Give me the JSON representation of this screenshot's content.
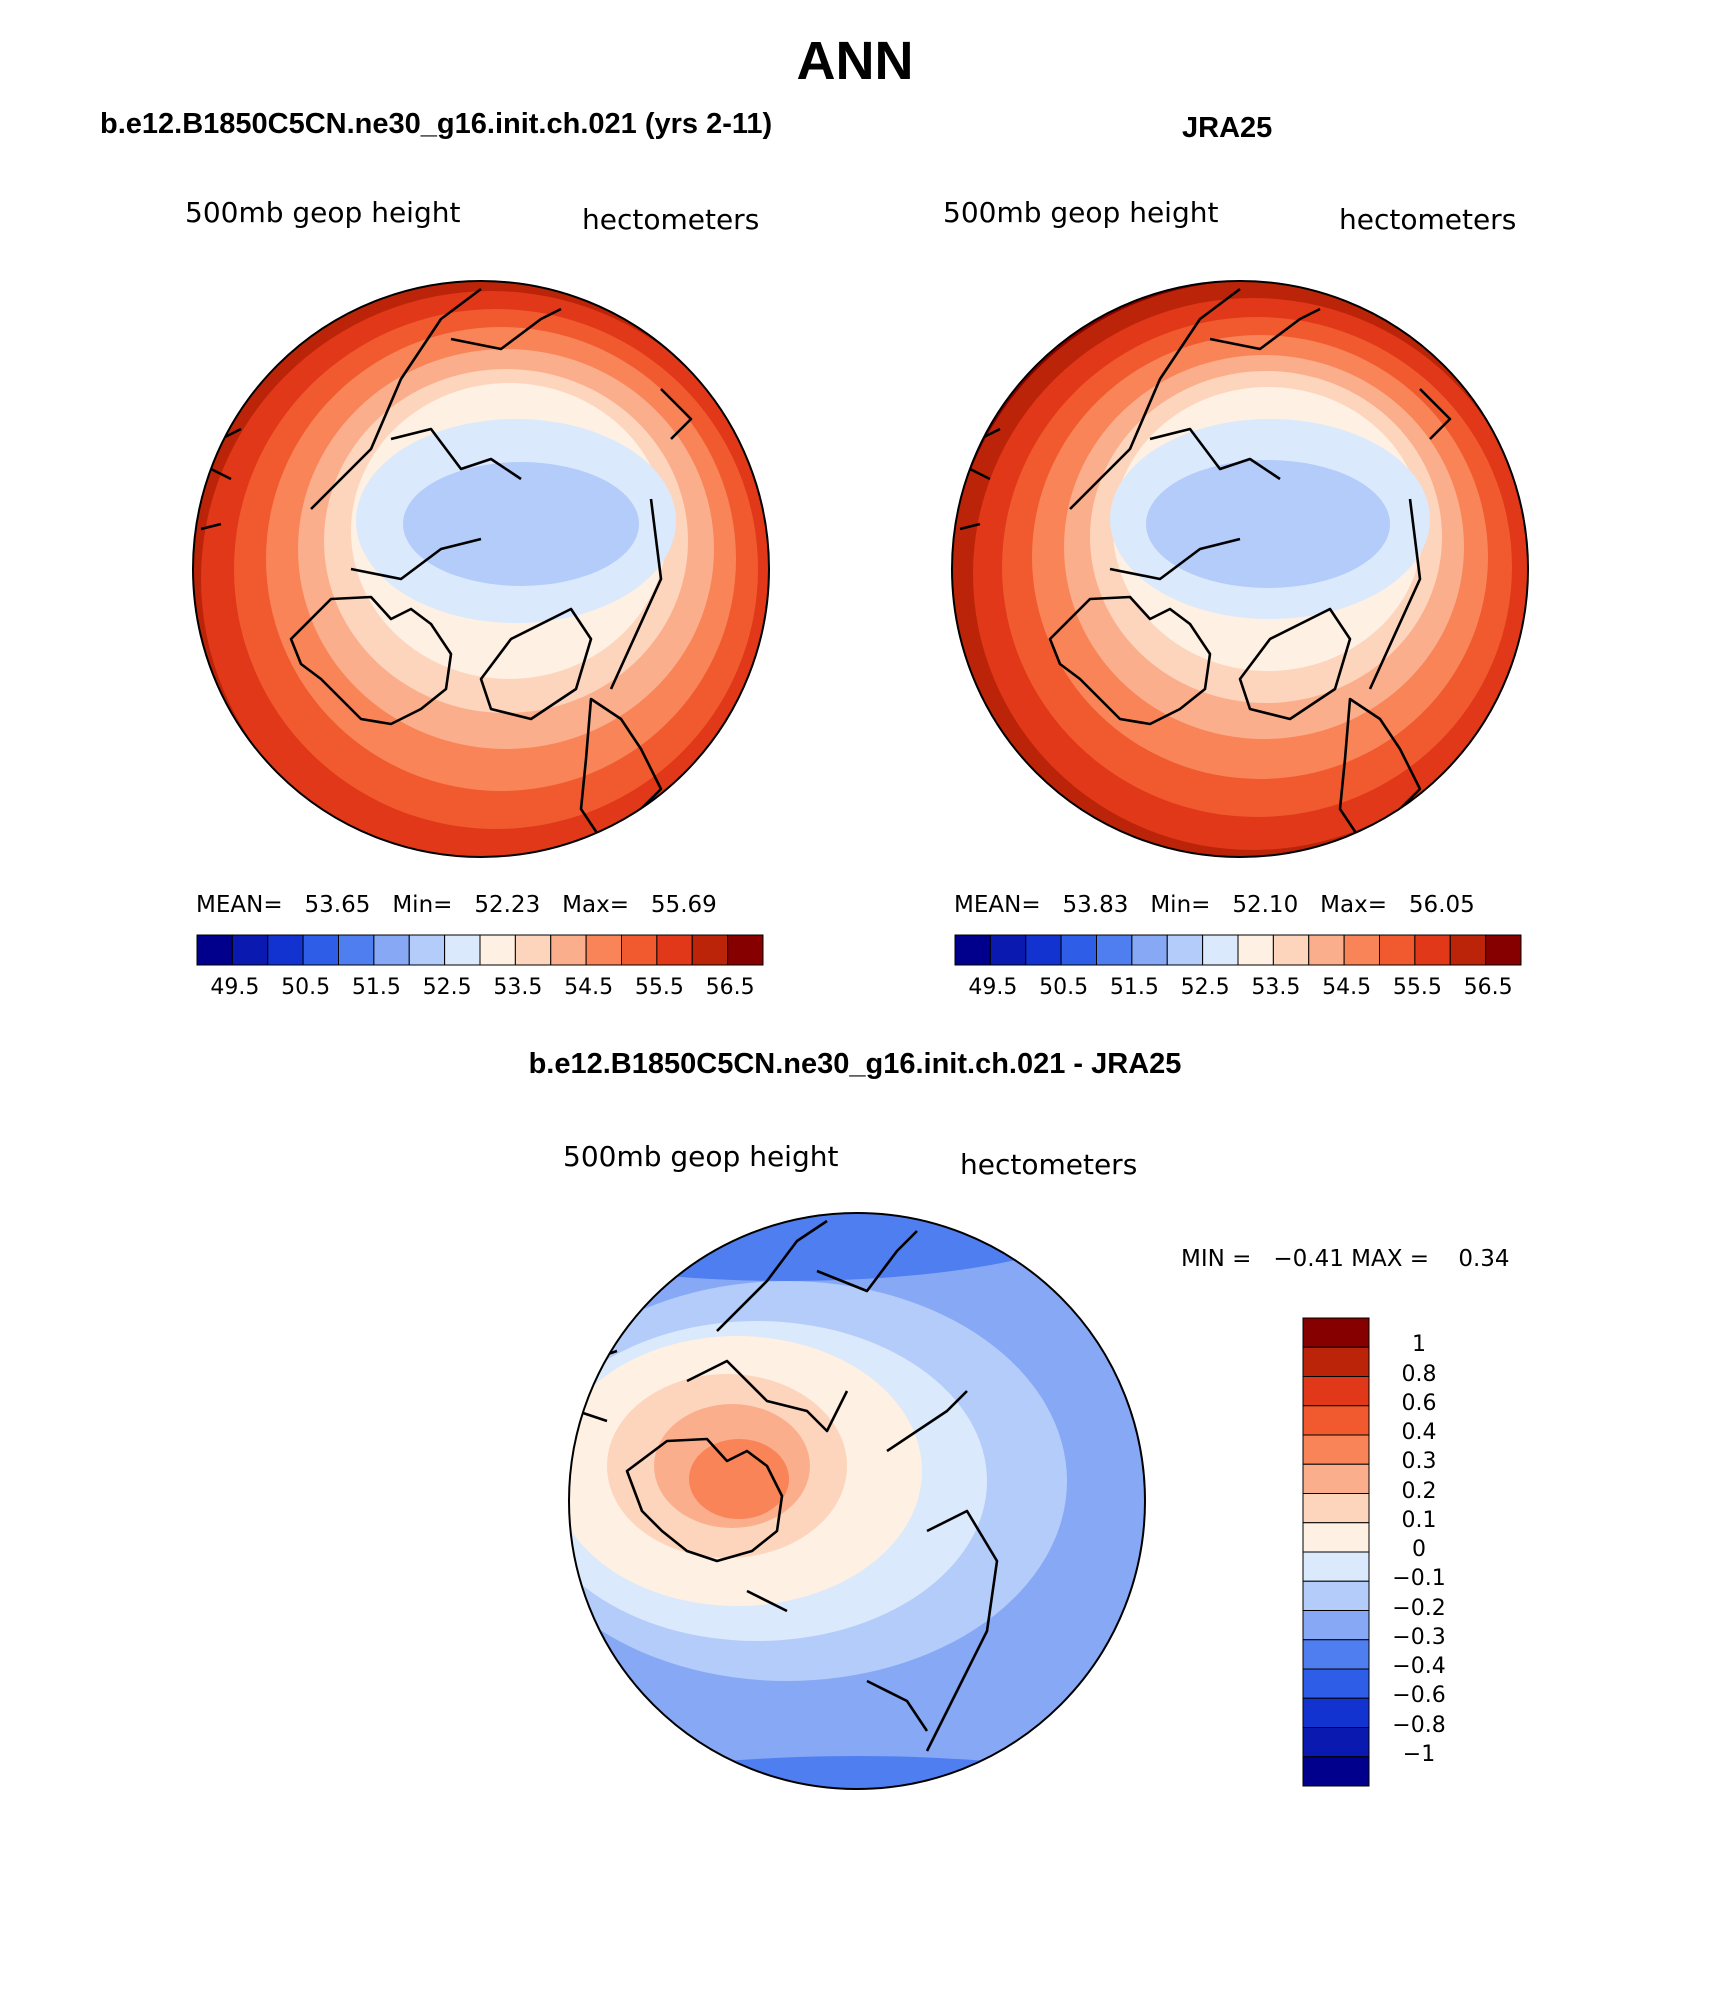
{
  "title": "ANN",
  "panels": [
    {
      "id": "model",
      "title": "b.e12.B1850C5CN.ne30_g16.init.ch.021 (yrs 2-11)",
      "variable_label": "500mb geop height",
      "units_label": "hectometers",
      "stats": {
        "mean_label": "MEAN=",
        "mean": "53.65",
        "min_label": "Min=",
        "min": "52.23",
        "max_label": "Max=",
        "max": "55.69"
      }
    },
    {
      "id": "obs",
      "title": "JRA25",
      "variable_label": "500mb geop height",
      "units_label": "hectometers",
      "stats": {
        "mean_label": "MEAN=",
        "mean": "53.83",
        "min_label": "Min=",
        "min": "52.10",
        "max_label": "Max=",
        "max": "56.05"
      }
    }
  ],
  "abs_colorbar": {
    "colors": [
      "#00008c",
      "#0a1ab0",
      "#1233d0",
      "#2e5ee8",
      "#4f7ef0",
      "#86a8f5",
      "#b4ccfa",
      "#dae9fc",
      "#fef0e2",
      "#fdd5bd",
      "#fbae8c",
      "#f88458",
      "#f05a2e",
      "#e03818",
      "#bb2408",
      "#860000"
    ],
    "tick_labels": [
      "49.5",
      "50.5",
      "51.5",
      "52.5",
      "53.5",
      "54.5",
      "55.5",
      "56.5"
    ]
  },
  "diff_panel": {
    "title": "b.e12.B1850C5CN.ne30_g16.init.ch.021 - JRA25",
    "variable_label": "500mb geop height",
    "units_label": "hectometers",
    "min_label": "MIN =",
    "min": "−0.41",
    "max_label": "MAX =",
    "max": "0.34"
  },
  "diff_colorbar": {
    "colors_top_to_bottom": [
      "#860000",
      "#bb2408",
      "#e03818",
      "#f05a2e",
      "#f88458",
      "#fbae8c",
      "#fdd5bd",
      "#fef0e2",
      "#dae9fc",
      "#b4ccfa",
      "#86a8f5",
      "#4f7ef0",
      "#2e5ee8",
      "#1233d0",
      "#0a1ab0",
      "#00008c"
    ],
    "tick_labels_top_to_bottom": [
      "1",
      "0.8",
      "0.6",
      "0.4",
      "0.3",
      "0.2",
      "0.1",
      "0",
      "−0.1",
      "−0.2",
      "−0.3",
      "−0.4",
      "−0.6",
      "−0.8",
      "−1"
    ]
  }
}
